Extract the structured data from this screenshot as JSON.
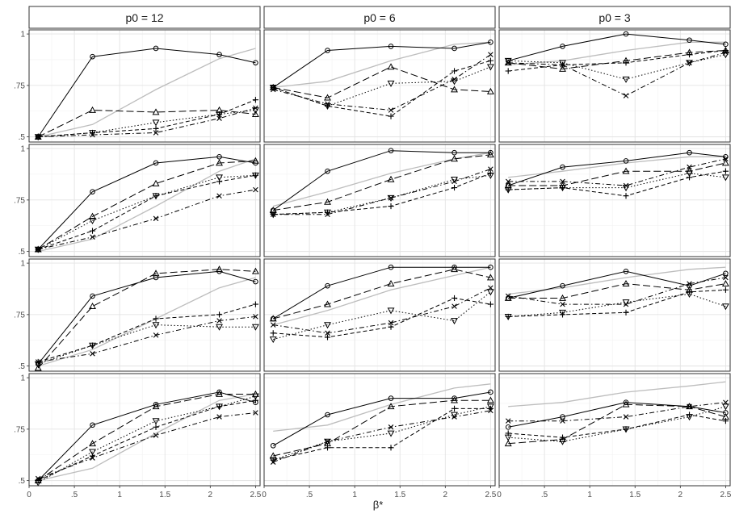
{
  "chart_data": {
    "type": "line",
    "layout": "faceted-grid",
    "columns": [
      "p0 = 12",
      "p0 = 6",
      "p0 = 3"
    ],
    "rows": 4,
    "xlabel": "β*",
    "ylabel": "",
    "x": [
      0.1,
      0.7,
      1.4,
      2.1,
      2.5
    ],
    "xlim": [
      0,
      2.55
    ],
    "ylim": [
      0.475,
      1.02
    ],
    "x_ticks": [
      0,
      0.5,
      1,
      1.5,
      2,
      2.5
    ],
    "x_tick_labels": [
      "0",
      ".5",
      "1",
      "1.5",
      "2",
      "2.5"
    ],
    "y_ticks": [
      0.5,
      0.75,
      1
    ],
    "y_tick_labels": [
      ".5",
      ".75",
      "1"
    ],
    "grid": true,
    "series_styles": [
      {
        "key": "circle",
        "line": "solid",
        "marker": "circle",
        "color": "#000000"
      },
      {
        "key": "triangle",
        "line": "longdash",
        "marker": "triangle",
        "color": "#000000"
      },
      {
        "key": "invtriangle",
        "line": "dotted",
        "marker": "triangle-down",
        "color": "#000000"
      },
      {
        "key": "plus",
        "line": "dashed",
        "marker": "plus",
        "color": "#000000"
      },
      {
        "key": "cross",
        "line": "dashdot",
        "marker": "cross",
        "color": "#000000"
      },
      {
        "key": "reference",
        "line": "solid",
        "marker": "none",
        "color": "#bdbdbd"
      }
    ],
    "panels": [
      [
        {
          "reference": [
            0.5,
            0.56,
            0.73,
            0.88,
            0.93
          ],
          "circle": [
            0.5,
            0.89,
            0.93,
            0.9,
            0.86
          ],
          "triangle": [
            0.5,
            0.63,
            0.62,
            0.63,
            0.61
          ],
          "invtriangle": [
            0.5,
            0.52,
            0.57,
            0.61,
            0.63
          ],
          "plus": [
            0.5,
            0.52,
            0.54,
            0.61,
            0.68
          ],
          "cross": [
            0.5,
            0.51,
            0.52,
            0.59,
            0.64
          ]
        },
        {
          "reference": [
            0.74,
            0.77,
            0.87,
            0.95,
            0.96
          ],
          "circle": [
            0.74,
            0.92,
            0.94,
            0.93,
            0.96
          ],
          "triangle": [
            0.74,
            0.69,
            0.84,
            0.73,
            0.72
          ],
          "invtriangle": [
            0.74,
            0.65,
            0.76,
            0.77,
            0.84
          ],
          "plus": [
            0.74,
            0.65,
            0.6,
            0.82,
            0.87
          ],
          "cross": [
            0.73,
            0.66,
            0.63,
            0.78,
            0.9
          ]
        },
        {
          "reference": [
            0.85,
            0.87,
            0.92,
            0.96,
            0.96
          ],
          "circle": [
            0.87,
            0.94,
            1.0,
            0.97,
            0.95
          ],
          "triangle": [
            0.86,
            0.83,
            0.87,
            0.91,
            0.92
          ],
          "invtriangle": [
            0.87,
            0.86,
            0.78,
            0.86,
            0.9
          ],
          "plus": [
            0.82,
            0.85,
            0.86,
            0.9,
            0.92
          ],
          "cross": [
            0.86,
            0.85,
            0.7,
            0.86,
            0.91
          ]
        }
      ],
      [
        {
          "reference": [
            0.5,
            0.56,
            0.72,
            0.89,
            0.95
          ],
          "circle": [
            0.51,
            0.79,
            0.93,
            0.96,
            0.93
          ],
          "triangle": [
            0.51,
            0.67,
            0.83,
            0.93,
            0.94
          ],
          "invtriangle": [
            0.51,
            0.65,
            0.77,
            0.86,
            0.87
          ],
          "plus": [
            0.51,
            0.6,
            0.77,
            0.84,
            0.87
          ],
          "cross": [
            0.51,
            0.57,
            0.66,
            0.77,
            0.8
          ]
        },
        {
          "reference": [
            0.72,
            0.79,
            0.88,
            0.95,
            0.98
          ],
          "circle": [
            0.7,
            0.89,
            0.99,
            0.98,
            0.98
          ],
          "triangle": [
            0.7,
            0.74,
            0.85,
            0.95,
            0.97
          ],
          "invtriangle": [
            0.68,
            0.69,
            0.76,
            0.85,
            0.87
          ],
          "plus": [
            0.68,
            0.69,
            0.72,
            0.81,
            0.88
          ],
          "cross": [
            0.68,
            0.68,
            0.76,
            0.84,
            0.9
          ]
        },
        {
          "reference": [
            0.86,
            0.89,
            0.93,
            0.96,
            0.96
          ],
          "circle": [
            0.82,
            0.91,
            0.94,
            0.98,
            0.96
          ],
          "triangle": [
            0.82,
            0.82,
            0.89,
            0.89,
            0.93
          ],
          "invtriangle": [
            0.8,
            0.81,
            0.81,
            0.88,
            0.86
          ],
          "plus": [
            0.8,
            0.81,
            0.77,
            0.86,
            0.89
          ],
          "cross": [
            0.84,
            0.84,
            0.82,
            0.91,
            0.95
          ]
        }
      ],
      [
        {
          "reference": [
            0.5,
            0.58,
            0.73,
            0.88,
            0.93
          ],
          "circle": [
            0.51,
            0.84,
            0.93,
            0.96,
            0.91
          ],
          "triangle": [
            0.49,
            0.79,
            0.95,
            0.97,
            0.96
          ],
          "invtriangle": [
            0.51,
            0.6,
            0.7,
            0.69,
            0.69
          ],
          "plus": [
            0.52,
            0.6,
            0.73,
            0.75,
            0.8
          ],
          "cross": [
            0.52,
            0.56,
            0.65,
            0.72,
            0.74
          ]
        },
        {
          "reference": [
            0.7,
            0.77,
            0.87,
            0.94,
            0.98
          ],
          "circle": [
            0.73,
            0.89,
            0.98,
            0.98,
            0.98
          ],
          "triangle": [
            0.73,
            0.8,
            0.9,
            0.97,
            0.93
          ],
          "invtriangle": [
            0.63,
            0.7,
            0.77,
            0.72,
            0.86
          ],
          "plus": [
            0.66,
            0.64,
            0.69,
            0.83,
            0.8
          ],
          "cross": [
            0.7,
            0.66,
            0.71,
            0.79,
            0.88
          ]
        },
        {
          "reference": [
            0.85,
            0.88,
            0.93,
            0.97,
            0.98
          ],
          "circle": [
            0.83,
            0.89,
            0.96,
            0.89,
            0.95
          ],
          "triangle": [
            0.83,
            0.83,
            0.9,
            0.87,
            0.9
          ],
          "invtriangle": [
            0.74,
            0.76,
            0.81,
            0.85,
            0.79
          ],
          "plus": [
            0.74,
            0.75,
            0.76,
            0.86,
            0.87
          ],
          "cross": [
            0.84,
            0.8,
            0.8,
            0.9,
            0.93
          ]
        }
      ],
      [
        {
          "reference": [
            0.5,
            0.56,
            0.73,
            0.89,
            0.92
          ],
          "circle": [
            0.5,
            0.77,
            0.87,
            0.93,
            0.88
          ],
          "triangle": [
            0.5,
            0.68,
            0.86,
            0.92,
            0.92
          ],
          "invtriangle": [
            0.49,
            0.64,
            0.79,
            0.86,
            0.91
          ],
          "plus": [
            0.5,
            0.62,
            0.76,
            0.86,
            0.89
          ],
          "cross": [
            0.51,
            0.61,
            0.72,
            0.81,
            0.83
          ]
        },
        {
          "reference": [
            0.74,
            0.77,
            0.87,
            0.95,
            0.97
          ],
          "circle": [
            0.67,
            0.82,
            0.9,
            0.9,
            0.93
          ],
          "triangle": [
            0.62,
            0.68,
            0.86,
            0.89,
            0.89
          ],
          "invtriangle": [
            0.6,
            0.69,
            0.73,
            0.82,
            0.86
          ],
          "plus": [
            0.6,
            0.66,
            0.66,
            0.85,
            0.85
          ],
          "cross": [
            0.59,
            0.69,
            0.76,
            0.81,
            0.84
          ]
        },
        {
          "reference": [
            0.86,
            0.88,
            0.93,
            0.96,
            0.98
          ],
          "circle": [
            0.76,
            0.81,
            0.88,
            0.86,
            0.83
          ],
          "triangle": [
            0.68,
            0.7,
            0.87,
            0.86,
            0.81
          ],
          "invtriangle": [
            0.71,
            0.69,
            0.75,
            0.81,
            0.86
          ],
          "plus": [
            0.73,
            0.71,
            0.75,
            0.82,
            0.79
          ],
          "cross": [
            0.79,
            0.79,
            0.81,
            0.86,
            0.88
          ]
        }
      ]
    ]
  }
}
